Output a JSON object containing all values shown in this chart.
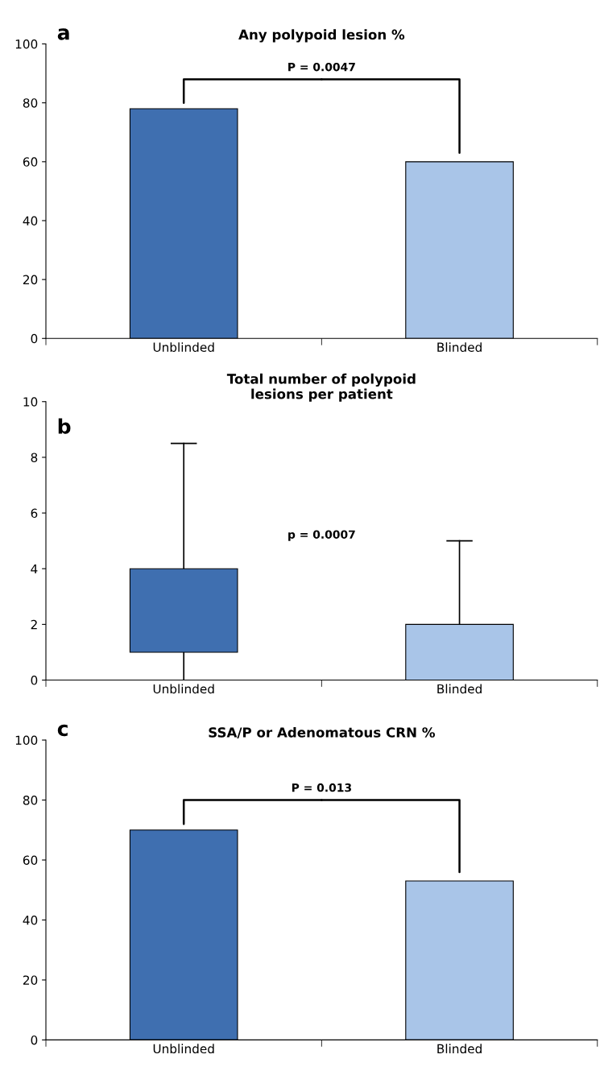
{
  "chart_data": [
    {
      "type": "bar",
      "title": "Any polypoid lesion %",
      "categories": [
        "Unblinded",
        "Blinded"
      ],
      "values": [
        78,
        60
      ],
      "colors": [
        "#3f6fb0",
        "#a9c5e8"
      ],
      "ylim": [
        0,
        100
      ],
      "yticks": [
        0,
        20,
        40,
        60,
        80,
        100
      ],
      "grid": false,
      "annotations": [
        "a",
        "P = 0.0047"
      ]
    },
    {
      "type": "bar",
      "title": "Total number of polypoid\nlesions per patient",
      "categories": [
        "Unblinded",
        "Blinded"
      ],
      "base": [
        1,
        0
      ],
      "values": [
        3,
        2
      ],
      "errors": [
        [
          0,
          8.5
        ],
        [
          2,
          5
        ]
      ],
      "colors": [
        "#3f6fb0",
        "#a9c5e8"
      ],
      "ylim": [
        0,
        10
      ],
      "yticks": [
        0,
        2,
        4,
        6,
        8,
        10
      ],
      "grid": false,
      "annotations": [
        "b",
        "p = 0.0007"
      ]
    },
    {
      "type": "bar",
      "title": "SSA/P or Adenomatous CRN %",
      "categories": [
        "Unblinded",
        "Blinded"
      ],
      "values": [
        70,
        53
      ],
      "colors": [
        "#3f6fb0",
        "#a9c5e8"
      ],
      "ylim": [
        0,
        100
      ],
      "yticks": [
        0,
        20,
        40,
        60,
        80,
        100
      ],
      "grid": false,
      "annotations": [
        "c",
        "P = 0.013"
      ]
    }
  ]
}
